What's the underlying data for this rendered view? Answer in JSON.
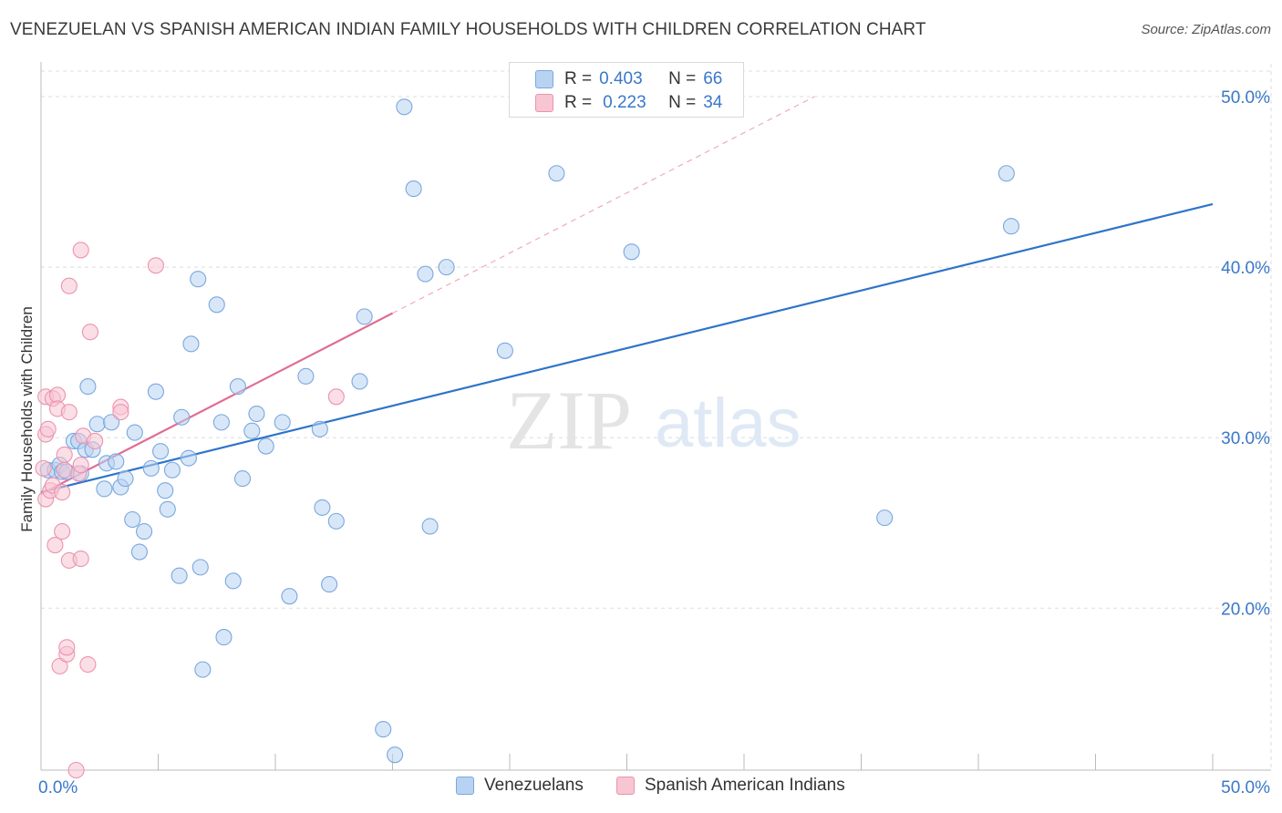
{
  "title": "VENEZUELAN VS SPANISH AMERICAN INDIAN FAMILY HOUSEHOLDS WITH CHILDREN CORRELATION CHART",
  "source": "Source: ZipAtlas.com",
  "watermark": {
    "zip": "ZIP",
    "atlas": "atlas"
  },
  "colors": {
    "blue_fill": "#b8d3f2",
    "blue_stroke": "#7aa7df",
    "blue_line": "#2e74c9",
    "pink_fill": "#f8c5d3",
    "pink_stroke": "#ec93ae",
    "pink_line": "#e06d95",
    "axis_text": "#3a78c9",
    "grid": "#dddddd"
  },
  "legend": {
    "rows": [
      {
        "r_label": "R =",
        "r_value": "0.403",
        "n_label": "N =",
        "n_value": "66"
      },
      {
        "r_label": "R =",
        "r_value": "0.223",
        "n_label": "N =",
        "n_value": "34"
      }
    ]
  },
  "chart_data": {
    "type": "scatter",
    "title": "VENEZUELAN VS SPANISH AMERICAN INDIAN FAMILY HOUSEHOLDS WITH CHILDREN CORRELATION CHART",
    "xlabel": "",
    "ylabel": "Family Households with Children",
    "xlim": [
      0,
      50
    ],
    "ylim": [
      10.5,
      51.5
    ],
    "x_tick_labels": [
      "0.0%",
      "50.0%"
    ],
    "y_ticks": [
      20,
      30,
      40,
      50
    ],
    "y_tick_labels": [
      "20.0%",
      "30.0%",
      "40.0%",
      "50.0%"
    ],
    "grid": true,
    "legend_position": "top-center",
    "series": [
      {
        "name": "Venezuelans",
        "color": "#b8d3f2",
        "r": 0.403,
        "n": 66,
        "trend": {
          "x": [
            0,
            50
          ],
          "y": [
            26.8,
            43.7
          ]
        },
        "points": [
          [
            0.3,
            28.1
          ],
          [
            0.6,
            28.1
          ],
          [
            0.8,
            28.4
          ],
          [
            0.9,
            28.0
          ],
          [
            1.1,
            28.0
          ],
          [
            1.4,
            29.8
          ],
          [
            1.6,
            29.8
          ],
          [
            1.7,
            27.9
          ],
          [
            1.9,
            29.3
          ],
          [
            2.0,
            33.0
          ],
          [
            2.2,
            29.3
          ],
          [
            2.4,
            30.8
          ],
          [
            2.7,
            27.0
          ],
          [
            2.8,
            28.5
          ],
          [
            3.0,
            30.9
          ],
          [
            3.2,
            28.6
          ],
          [
            3.4,
            27.1
          ],
          [
            3.6,
            27.6
          ],
          [
            3.9,
            25.2
          ],
          [
            4.0,
            30.3
          ],
          [
            4.2,
            23.3
          ],
          [
            4.4,
            24.5
          ],
          [
            4.7,
            28.2
          ],
          [
            4.9,
            32.7
          ],
          [
            5.1,
            29.2
          ],
          [
            5.3,
            26.9
          ],
          [
            5.4,
            25.8
          ],
          [
            5.6,
            28.1
          ],
          [
            5.9,
            21.9
          ],
          [
            6.0,
            31.2
          ],
          [
            6.3,
            28.8
          ],
          [
            6.4,
            35.5
          ],
          [
            6.7,
            39.3
          ],
          [
            6.8,
            22.4
          ],
          [
            6.9,
            16.4
          ],
          [
            7.5,
            37.8
          ],
          [
            7.7,
            30.9
          ],
          [
            7.8,
            18.3
          ],
          [
            8.2,
            21.6
          ],
          [
            8.4,
            33.0
          ],
          [
            8.6,
            27.6
          ],
          [
            9.0,
            30.4
          ],
          [
            9.2,
            31.4
          ],
          [
            9.6,
            29.5
          ],
          [
            10.3,
            30.9
          ],
          [
            10.6,
            20.7
          ],
          [
            11.3,
            33.6
          ],
          [
            11.9,
            30.5
          ],
          [
            12.0,
            25.9
          ],
          [
            12.3,
            21.4
          ],
          [
            12.6,
            25.1
          ],
          [
            13.6,
            33.3
          ],
          [
            13.8,
            37.1
          ],
          [
            14.6,
            12.9
          ],
          [
            15.1,
            11.4
          ],
          [
            15.5,
            49.4
          ],
          [
            15.9,
            44.6
          ],
          [
            16.4,
            39.6
          ],
          [
            16.6,
            24.8
          ],
          [
            17.3,
            40.0
          ],
          [
            19.8,
            35.1
          ],
          [
            22.0,
            45.5
          ],
          [
            25.2,
            40.9
          ],
          [
            36.0,
            25.3
          ],
          [
            41.2,
            45.5
          ],
          [
            41.4,
            42.4
          ]
        ]
      },
      {
        "name": "Spanish American Indians",
        "color": "#f8c5d3",
        "r": 0.223,
        "n": 34,
        "trend": {
          "x": [
            0,
            15
          ],
          "y": [
            26.7,
            37.3
          ]
        },
        "trend_extension": {
          "x": [
            15,
            33
          ],
          "y": [
            37.3,
            50.0
          ]
        },
        "points": [
          [
            0.1,
            28.2
          ],
          [
            0.2,
            32.4
          ],
          [
            0.2,
            26.4
          ],
          [
            0.2,
            30.2
          ],
          [
            0.3,
            30.5
          ],
          [
            0.4,
            26.9
          ],
          [
            0.5,
            27.2
          ],
          [
            0.5,
            32.3
          ],
          [
            0.6,
            23.7
          ],
          [
            0.7,
            32.5
          ],
          [
            0.7,
            31.7
          ],
          [
            0.8,
            16.6
          ],
          [
            0.9,
            24.5
          ],
          [
            0.9,
            26.8
          ],
          [
            1.0,
            28.1
          ],
          [
            1.0,
            29.0
          ],
          [
            1.1,
            17.3
          ],
          [
            1.1,
            17.7
          ],
          [
            1.2,
            31.5
          ],
          [
            1.2,
            22.8
          ],
          [
            1.2,
            38.9
          ],
          [
            1.5,
            10.5
          ],
          [
            1.6,
            27.9
          ],
          [
            1.7,
            41.0
          ],
          [
            1.7,
            22.9
          ],
          [
            1.7,
            28.4
          ],
          [
            1.8,
            30.1
          ],
          [
            2.0,
            16.7
          ],
          [
            2.1,
            36.2
          ],
          [
            2.3,
            29.8
          ],
          [
            3.4,
            31.8
          ],
          [
            3.4,
            31.5
          ],
          [
            4.9,
            40.1
          ],
          [
            12.6,
            32.4
          ]
        ]
      }
    ]
  },
  "bottom_legend": [
    {
      "label": "Venezuelans"
    },
    {
      "label": "Spanish American Indians"
    }
  ]
}
